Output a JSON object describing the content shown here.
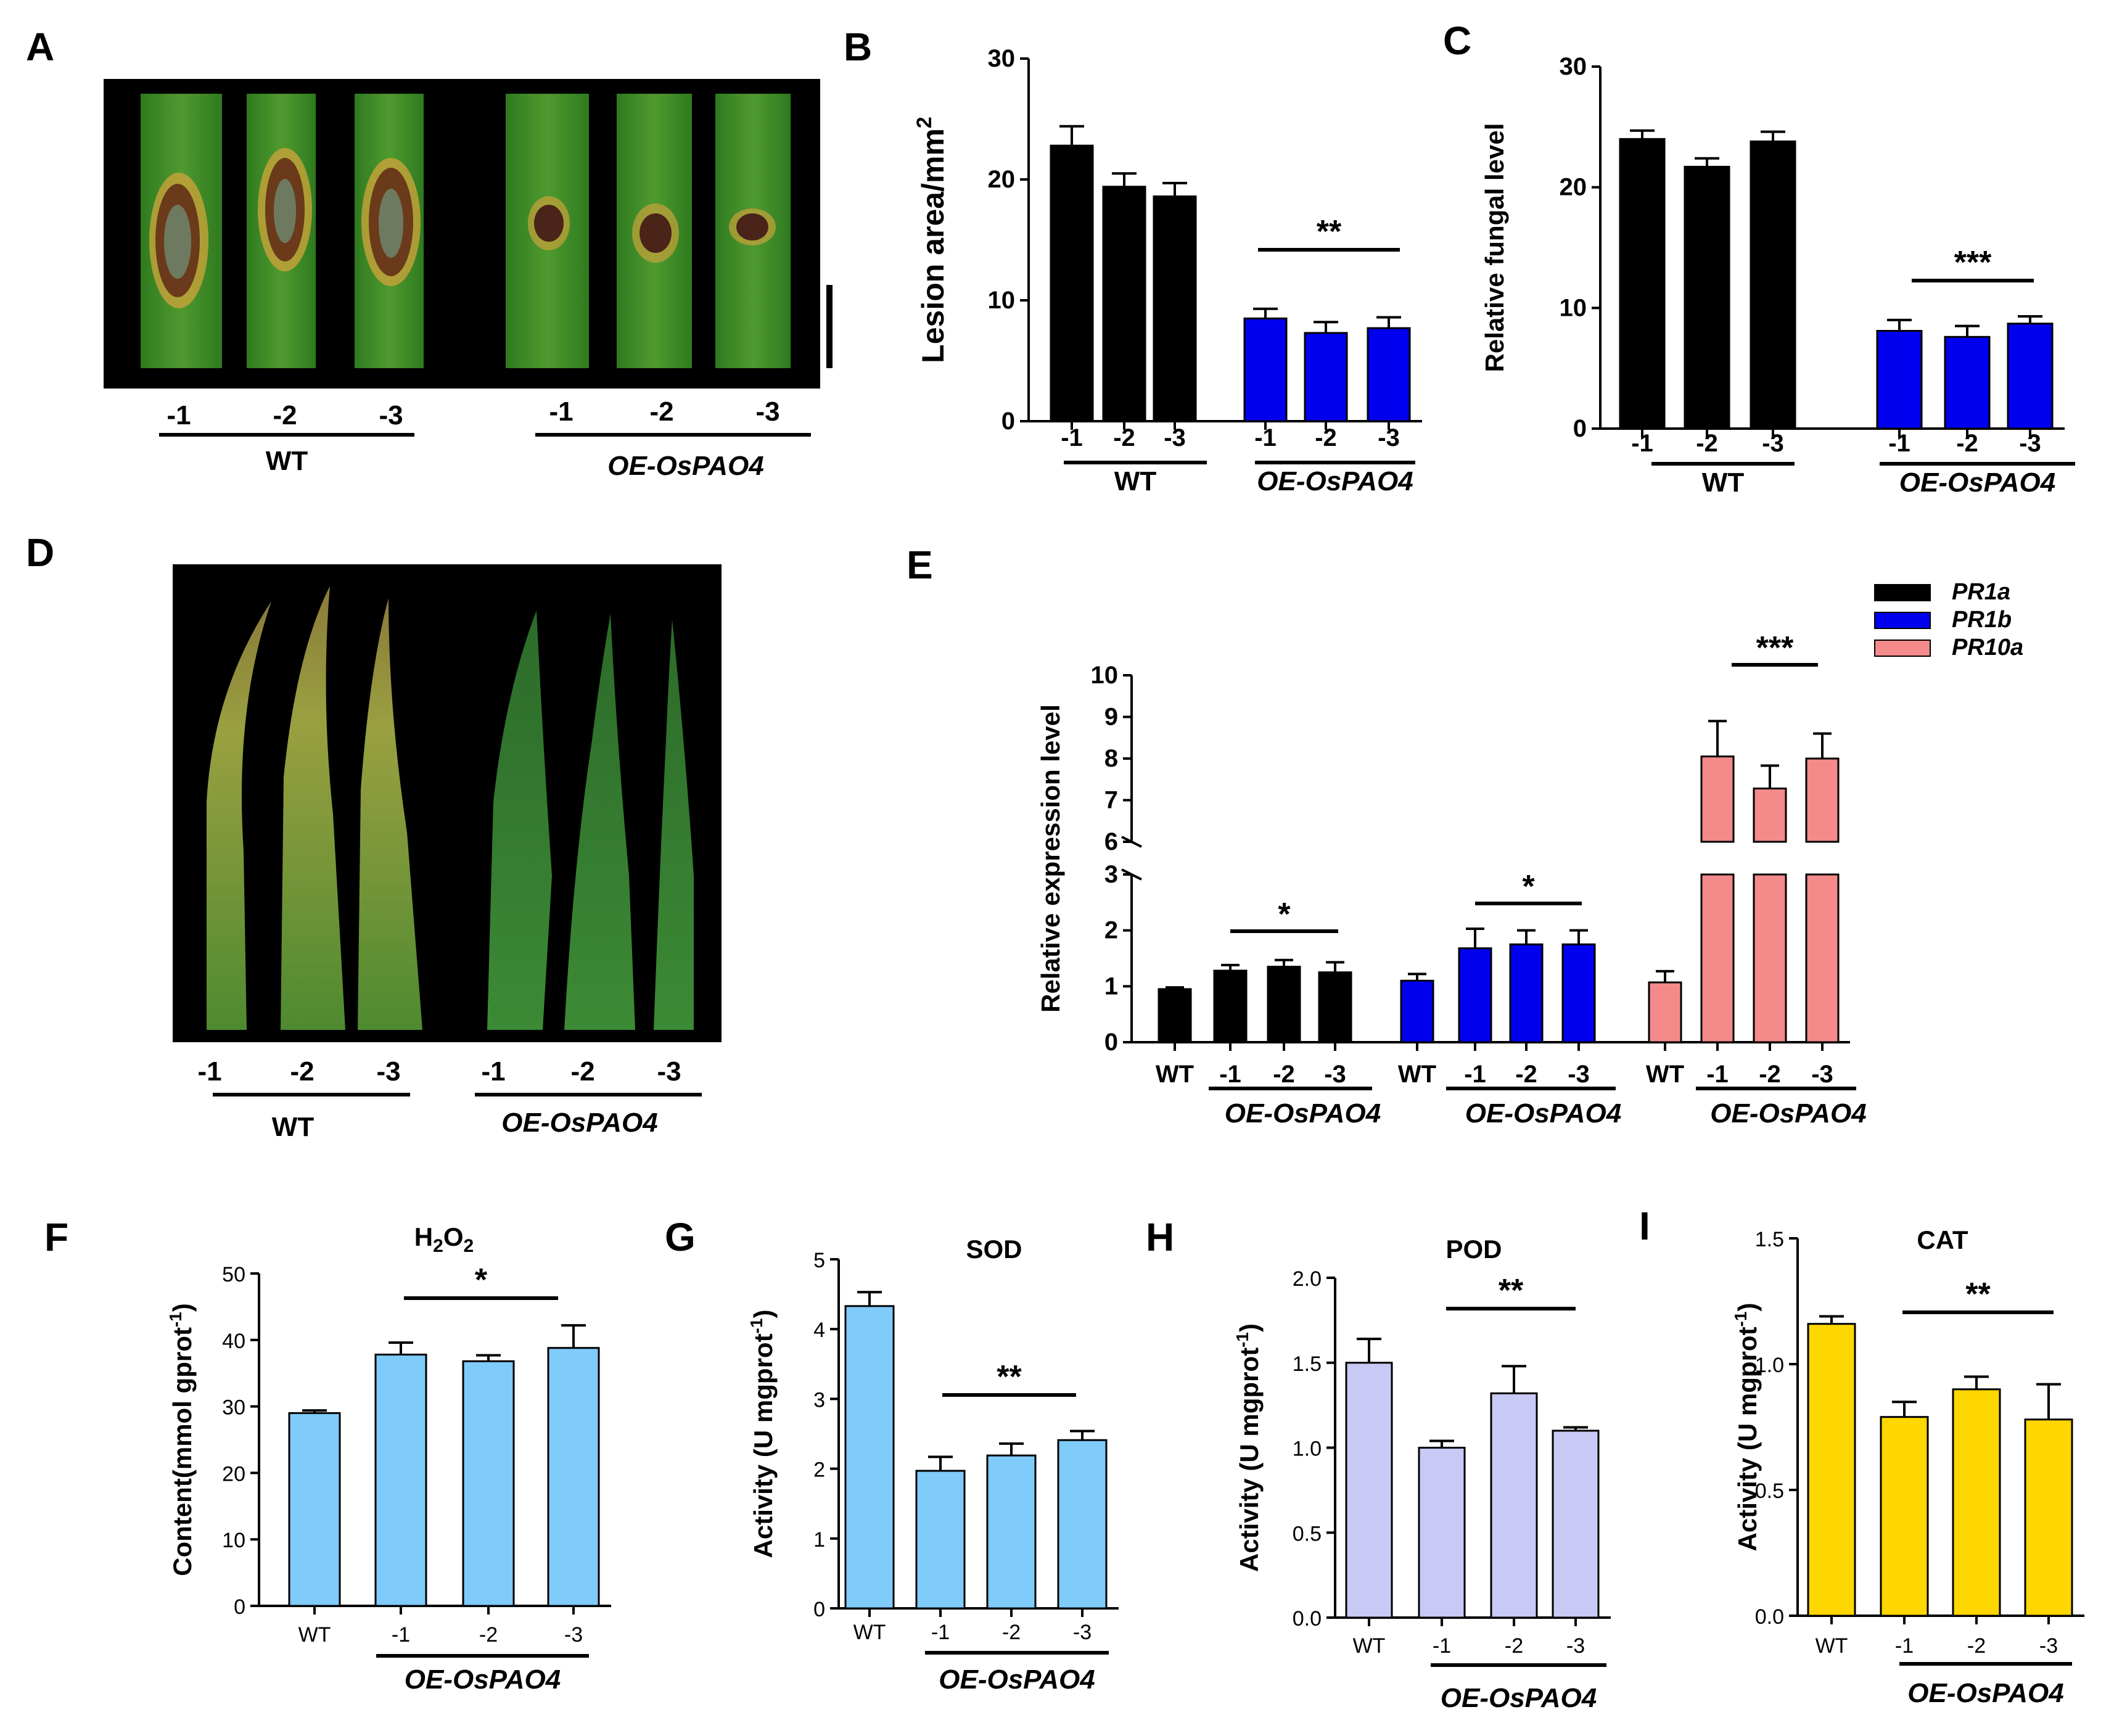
{
  "panel_labels": [
    "A",
    "B",
    "C",
    "D",
    "E",
    "F",
    "G",
    "H",
    "I"
  ],
  "photos": {
    "A": {
      "wt_labels": [
        "-1",
        "-2",
        "-3"
      ],
      "oe_labels": [
        "-1",
        "-2",
        "-3"
      ],
      "wt_group": "WT",
      "oe_group": "OE-OsPAO4"
    },
    "D": {
      "wt_labels": [
        "-1",
        "-2",
        "-3"
      ],
      "oe_labels": [
        "-1",
        "-2",
        "-3"
      ],
      "wt_group": "WT",
      "oe_group": "OE-OsPAO4"
    }
  },
  "colors": {
    "black": "#000000",
    "blue": "#0000ee",
    "pink": "#f48a8a",
    "skyblue": "#7fcbfa",
    "lavender": "#c9c9f5",
    "gold": "#fed600"
  },
  "chart_data": [
    {
      "id": "B",
      "type": "bar",
      "ylabel": "Lesion area/mm",
      "ylabel_sup": "2",
      "ylim": [
        0,
        30
      ],
      "yticks": [
        "0",
        "10",
        "20",
        "30"
      ],
      "categories": [
        "-1",
        "-2",
        "-3",
        "-1",
        "-2",
        "-3"
      ],
      "values": [
        22.8,
        19.4,
        18.6,
        8.5,
        7.3,
        7.7
      ],
      "errors": [
        1.6,
        1.1,
        1.1,
        0.8,
        0.9,
        0.9
      ],
      "bar_colors": [
        "black",
        "black",
        "black",
        "blue",
        "blue",
        "blue"
      ],
      "groups": [
        "WT",
        "OE-OsPAO4"
      ],
      "significance": "**"
    },
    {
      "id": "C",
      "type": "bar",
      "ylabel": "Relative fungal level",
      "ylim": [
        0,
        30
      ],
      "yticks": [
        "0",
        "10",
        "20",
        "30"
      ],
      "categories": [
        "-1",
        "-2",
        "-3",
        "-1",
        "-2",
        "-3"
      ],
      "values": [
        24.0,
        21.7,
        23.8,
        8.1,
        7.6,
        8.7
      ],
      "errors": [
        0.7,
        0.7,
        0.8,
        0.9,
        0.9,
        0.6
      ],
      "bar_colors": [
        "black",
        "black",
        "black",
        "blue",
        "blue",
        "blue"
      ],
      "groups": [
        "WT",
        "OE-OsPAO4"
      ],
      "significance": "***"
    },
    {
      "id": "E",
      "type": "bar",
      "ylabel": "Relative expression level",
      "yticks_low": [
        "0",
        "1",
        "2",
        "3"
      ],
      "yticks_high": [
        "6",
        "7",
        "8",
        "9",
        "10"
      ],
      "axis_break": [
        3,
        6
      ],
      "legend": [
        "PR1a",
        "PR1b",
        "PR10a"
      ],
      "series": [
        {
          "name": "PR1a",
          "color": "black",
          "categories": [
            "WT",
            "-1",
            "-2",
            "-3"
          ],
          "values": [
            0.95,
            1.28,
            1.35,
            1.25
          ],
          "errors": [
            0.03,
            0.1,
            0.12,
            0.18
          ],
          "group": "OE-OsPAO4",
          "significance": "*"
        },
        {
          "name": "PR1b",
          "color": "blue",
          "categories": [
            "WT",
            "-1",
            "-2",
            "-3"
          ],
          "values": [
            1.1,
            1.68,
            1.75,
            1.75
          ],
          "errors": [
            0.12,
            0.35,
            0.25,
            0.25
          ],
          "group": "OE-OsPAO4",
          "significance": "*"
        },
        {
          "name": "PR10a",
          "color": "pink",
          "categories": [
            "WT",
            "-1",
            "-2",
            "-3"
          ],
          "values": [
            1.07,
            8.05,
            7.28,
            8.0
          ],
          "errors": [
            0.2,
            0.85,
            0.55,
            0.6
          ],
          "group": "OE-OsPAO4",
          "significance": "***"
        }
      ]
    },
    {
      "id": "F",
      "type": "bar",
      "title": "H",
      "title_sub": "2",
      "title_end": "O",
      "title_sub2": "2",
      "ylabel": "Content(mmol gprot",
      "ylabel_sup": "-1",
      "ylabel_end": ")",
      "ylim": [
        0,
        50
      ],
      "yticks": [
        "0",
        "10",
        "20",
        "30",
        "40",
        "50"
      ],
      "categories": [
        "WT",
        "-1",
        "-2",
        "-3"
      ],
      "values": [
        29.0,
        37.8,
        36.8,
        38.8
      ],
      "errors": [
        0.4,
        1.8,
        0.9,
        3.4
      ],
      "bar_color": "skyblue",
      "group": "OE-OsPAO4",
      "significance": "*"
    },
    {
      "id": "G",
      "type": "bar",
      "title": "SOD",
      "ylabel": "Activity (U mgprot",
      "ylabel_sup": "-1",
      "ylabel_end": ")",
      "ylim": [
        0,
        5
      ],
      "yticks": [
        "0",
        "1",
        "2",
        "3",
        "4",
        "5"
      ],
      "categories": [
        "WT",
        "-1",
        "-2",
        "-3"
      ],
      "values": [
        4.33,
        1.97,
        2.19,
        2.41
      ],
      "errors": [
        0.2,
        0.2,
        0.17,
        0.13
      ],
      "bar_color": "skyblue",
      "group": "OE-OsPAO4",
      "significance": "**"
    },
    {
      "id": "H",
      "type": "bar",
      "title": "POD",
      "ylabel": "Activity (U mgprot",
      "ylabel_sup": "-1",
      "ylabel_end": ")",
      "ylim": [
        0,
        2.0
      ],
      "yticks": [
        "0.0",
        "0.5",
        "1.0",
        "1.5",
        "2.0"
      ],
      "categories": [
        "WT",
        "-1",
        "-2",
        "-3"
      ],
      "values": [
        1.5,
        1.0,
        1.32,
        1.1
      ],
      "errors": [
        0.14,
        0.04,
        0.16,
        0.02
      ],
      "bar_color": "lavender",
      "group": "OE-OsPAO4",
      "significance": "**"
    },
    {
      "id": "I",
      "type": "bar",
      "title": "CAT",
      "ylabel": "Activity (U mgprot",
      "ylabel_sup": "-1",
      "ylabel_end": ")",
      "ylim": [
        0,
        1.5
      ],
      "yticks": [
        "0.0",
        "0.5",
        "1.0",
        "1.5"
      ],
      "categories": [
        "WT",
        "-1",
        "-2",
        "-3"
      ],
      "values": [
        1.16,
        0.79,
        0.9,
        0.78
      ],
      "errors": [
        0.03,
        0.06,
        0.05,
        0.14
      ],
      "bar_color": "gold",
      "group": "OE-OsPAO4",
      "significance": "**"
    }
  ]
}
